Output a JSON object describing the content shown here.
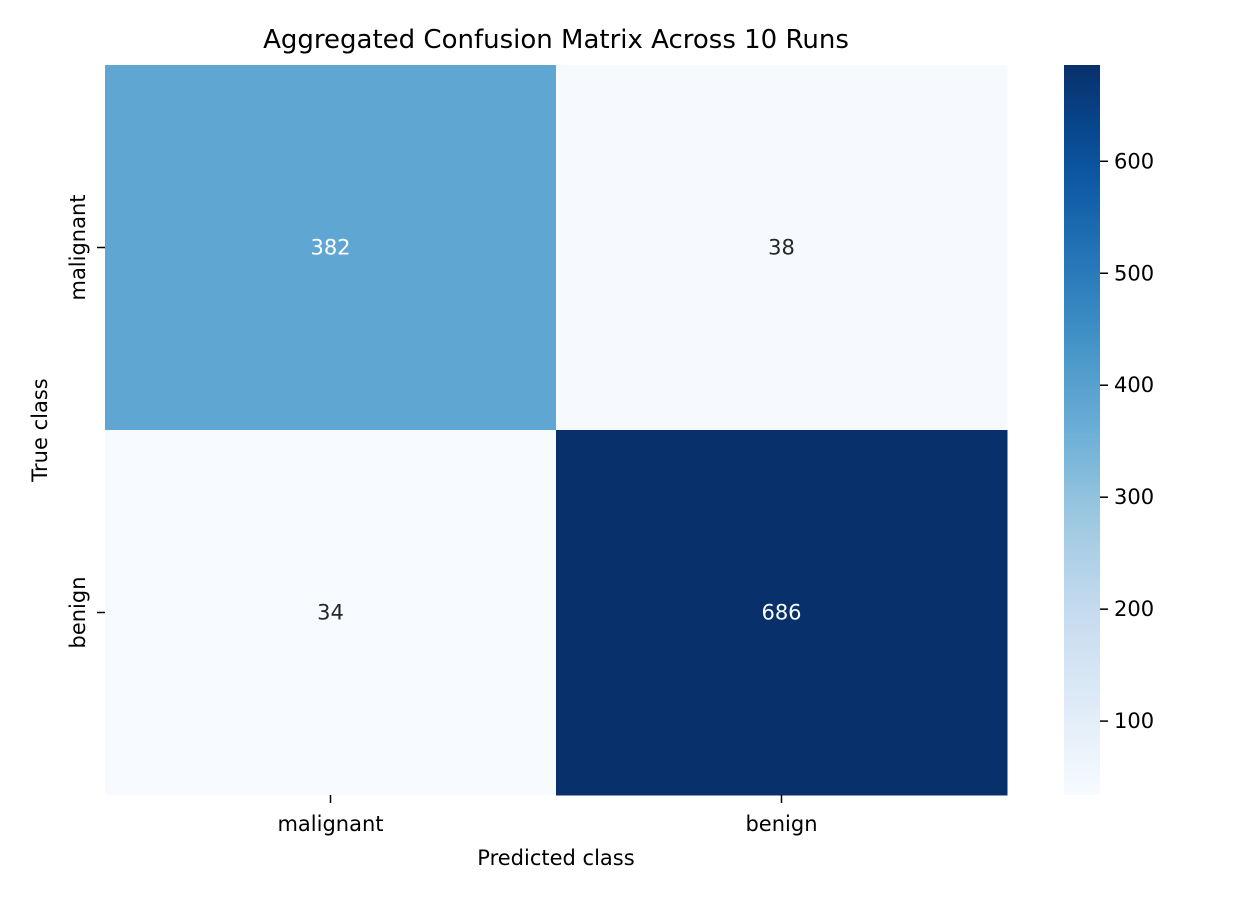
{
  "chart_data": {
    "type": "heatmap",
    "title": "Aggregated Confusion Matrix Across 10 Runs",
    "xlabel": "Predicted class",
    "ylabel": "True class",
    "x_categories": [
      "malignant",
      "benign"
    ],
    "y_categories": [
      "malignant",
      "benign"
    ],
    "values": [
      [
        382,
        38
      ],
      [
        34,
        686
      ]
    ],
    "colormap": "Blues",
    "color_range": [
      34,
      686
    ],
    "colorbar_ticks": [
      100,
      200,
      300,
      400,
      500,
      600
    ],
    "colorbar_ticks_labels": [
      "100",
      "200",
      "300",
      "400",
      "500",
      "600"
    ],
    "annotation_colors": {
      "light_cell": "#262626",
      "dark_cell": "#ffffff"
    },
    "grid": false
  }
}
